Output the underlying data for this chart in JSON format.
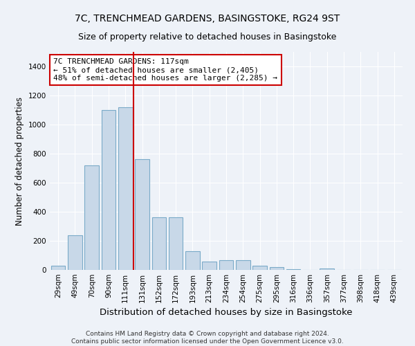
{
  "title": "7C, TRENCHMEAD GARDENS, BASINGSTOKE, RG24 9ST",
  "subtitle": "Size of property relative to detached houses in Basingstoke",
  "xlabel": "Distribution of detached houses by size in Basingstoke",
  "ylabel": "Number of detached properties",
  "categories": [
    "29sqm",
    "49sqm",
    "70sqm",
    "90sqm",
    "111sqm",
    "131sqm",
    "152sqm",
    "172sqm",
    "193sqm",
    "213sqm",
    "234sqm",
    "254sqm",
    "275sqm",
    "295sqm",
    "316sqm",
    "336sqm",
    "357sqm",
    "377sqm",
    "398sqm",
    "418sqm",
    "439sqm"
  ],
  "values": [
    30,
    240,
    720,
    1100,
    1120,
    760,
    360,
    360,
    130,
    55,
    65,
    65,
    30,
    20,
    5,
    0,
    10,
    0,
    0,
    0,
    0
  ],
  "bar_color": "#c8d8e8",
  "bar_edgecolor": "#7aaac8",
  "bar_linewidth": 0.8,
  "vline_color": "#cc0000",
  "vline_linewidth": 1.5,
  "annotation_text": "7C TRENCHMEAD GARDENS: 117sqm\n← 51% of detached houses are smaller (2,405)\n48% of semi-detached houses are larger (2,285) →",
  "annotation_box_edgecolor": "#cc0000",
  "annotation_box_facecolor": "#ffffff",
  "annotation_fontsize": 8.0,
  "ylim": [
    0,
    1500
  ],
  "yticks": [
    0,
    200,
    400,
    600,
    800,
    1000,
    1200,
    1400
  ],
  "title_fontsize": 10,
  "subtitle_fontsize": 9,
  "xlabel_fontsize": 9.5,
  "ylabel_fontsize": 8.5,
  "tick_fontsize": 7.5,
  "background_color": "#eef2f8",
  "axes_background": "#eef2f8",
  "grid_color": "#ffffff",
  "footer": "Contains HM Land Registry data © Crown copyright and database right 2024.\nContains public sector information licensed under the Open Government Licence v3.0.",
  "footer_fontsize": 6.5
}
